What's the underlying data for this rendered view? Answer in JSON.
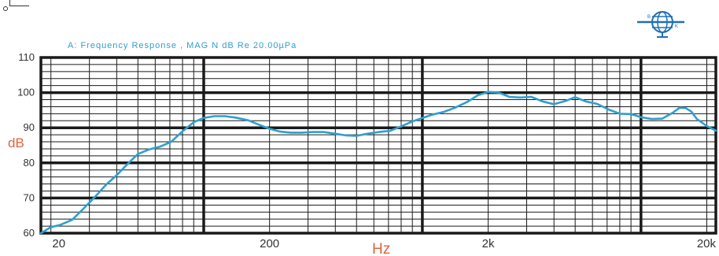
{
  "chart_data": {
    "type": "line",
    "title": "A:   Frequency Response , MAG N dB  Re 20.00µPa",
    "xlabel": "Hz",
    "ylabel": "dB",
    "x_scale": "log",
    "xlim": [
      18,
      22000
    ],
    "ylim": [
      60,
      110
    ],
    "x_ticks": [
      {
        "value": 20,
        "label": "20"
      },
      {
        "value": 200,
        "label": "200"
      },
      {
        "value": 2000,
        "label": "2k"
      },
      {
        "value": 20000,
        "label": "20k"
      }
    ],
    "y_ticks": [
      {
        "value": 60,
        "label": "60"
      },
      {
        "value": 70,
        "label": "70"
      },
      {
        "value": 80,
        "label": "80"
      },
      {
        "value": 90,
        "label": "90"
      },
      {
        "value": 100,
        "label": "100"
      },
      {
        "value": 110,
        "label": "110"
      }
    ],
    "grid": true,
    "series": [
      {
        "color": "#2e9fd0",
        "points": [
          [
            18,
            60
          ],
          [
            20,
            61.7
          ],
          [
            22,
            62.3
          ],
          [
            25,
            63.8
          ],
          [
            28,
            66.8
          ],
          [
            32,
            70.5
          ],
          [
            36,
            74
          ],
          [
            40,
            76.5
          ],
          [
            45,
            79.8
          ],
          [
            50,
            82.5
          ],
          [
            56,
            83.8
          ],
          [
            63,
            84.6
          ],
          [
            71,
            86
          ],
          [
            80,
            89
          ],
          [
            90,
            91.6
          ],
          [
            100,
            92.8
          ],
          [
            112,
            93.3
          ],
          [
            125,
            93.3
          ],
          [
            140,
            92.9
          ],
          [
            160,
            92.1
          ],
          [
            180,
            90.8
          ],
          [
            200,
            89.7
          ],
          [
            224,
            88.9
          ],
          [
            250,
            88.6
          ],
          [
            280,
            88.6
          ],
          [
            315,
            88.8
          ],
          [
            355,
            88.8
          ],
          [
            400,
            88.3
          ],
          [
            450,
            87.8
          ],
          [
            500,
            87.7
          ],
          [
            560,
            88.3
          ],
          [
            630,
            88.8
          ],
          [
            710,
            89.1
          ],
          [
            800,
            90.4
          ],
          [
            900,
            91.8
          ],
          [
            1000,
            92.8
          ],
          [
            1120,
            93.8
          ],
          [
            1250,
            94.5
          ],
          [
            1400,
            95.6
          ],
          [
            1600,
            97.3
          ],
          [
            1800,
            99.3
          ],
          [
            2000,
            100.2
          ],
          [
            2240,
            100
          ],
          [
            2500,
            98.8
          ],
          [
            2800,
            98.6
          ],
          [
            3150,
            98.8
          ],
          [
            3550,
            97.5
          ],
          [
            4000,
            96.7
          ],
          [
            4500,
            97.6
          ],
          [
            5000,
            98.7
          ],
          [
            5600,
            97.5
          ],
          [
            6300,
            96.8
          ],
          [
            7100,
            95.2
          ],
          [
            8000,
            94
          ],
          [
            9000,
            93.9
          ],
          [
            10000,
            93
          ],
          [
            11200,
            92.5
          ],
          [
            12500,
            92.6
          ],
          [
            14000,
            94.3
          ],
          [
            15000,
            95.7
          ],
          [
            16000,
            95.6
          ],
          [
            17000,
            94.6
          ],
          [
            18000,
            92.5
          ],
          [
            20000,
            90.5
          ],
          [
            22000,
            89.2
          ]
        ]
      }
    ]
  },
  "colors": {
    "title": "#2e9fd0",
    "grid": "#1a1a1a",
    "ylabel": "#e0643c",
    "xlabel": "#e0643c",
    "tick": "#333333",
    "logo": "#1e6fb5"
  },
  "icons": {
    "logo": "globe-logo-icon",
    "corner_mark": "corner-mark-icon"
  }
}
